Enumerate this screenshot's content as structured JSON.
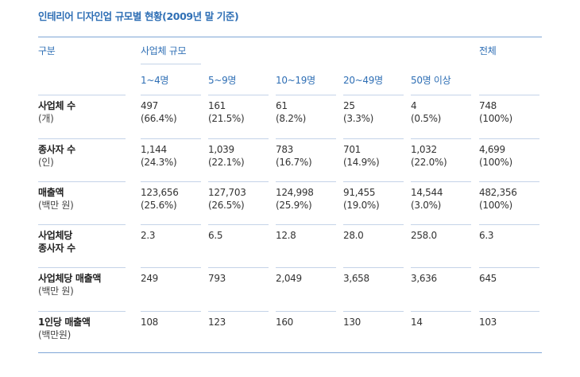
{
  "title": "인테리어 디자인업 규모별 현황(2009년 말 기준)",
  "header": {
    "category": "구분",
    "group": "사업체 규모",
    "total": "전체",
    "sizes": [
      "1~4명",
      "5~9명",
      "10~19명",
      "20~49명",
      "50명 이상"
    ]
  },
  "rows": [
    {
      "label": "사업체 수",
      "sub": "(개)",
      "cells": [
        [
          "497",
          "(66.4%)"
        ],
        [
          "161",
          "(21.5%)"
        ],
        [
          "61",
          "(8.2%)"
        ],
        [
          "25",
          "(3.3%)"
        ],
        [
          "4",
          "(0.5%)"
        ],
        [
          "748",
          "(100%)"
        ]
      ]
    },
    {
      "label": "종사자 수",
      "sub": "(인)",
      "cells": [
        [
          "1,144",
          "(24.3%)"
        ],
        [
          "1,039",
          "(22.1%)"
        ],
        [
          "783",
          "(16.7%)"
        ],
        [
          "701",
          "(14.9%)"
        ],
        [
          "1,032",
          "(22.0%)"
        ],
        [
          "4,699",
          "(100%)"
        ]
      ]
    },
    {
      "label": "매출액",
      "sub": "(백만 원)",
      "cells": [
        [
          "123,656",
          "(25.6%)"
        ],
        [
          "127,703",
          "(26.5%)"
        ],
        [
          "124,998",
          "(25.9%)"
        ],
        [
          "91,455",
          "(19.0%)"
        ],
        [
          "14,544",
          "(3.0%)"
        ],
        [
          "482,356",
          "(100%)"
        ]
      ]
    },
    {
      "label": "사업체당",
      "sub": "종사자 수",
      "sub_bold": true,
      "cells": [
        [
          "2.3"
        ],
        [
          "6.5"
        ],
        [
          "12.8"
        ],
        [
          "28.0"
        ],
        [
          "258.0"
        ],
        [
          "6.3"
        ]
      ]
    },
    {
      "label": "사업체당 매출액",
      "sub": "(백만 원)",
      "cells": [
        [
          "249"
        ],
        [
          "793"
        ],
        [
          "2,049"
        ],
        [
          "3,658"
        ],
        [
          "3,636"
        ],
        [
          "645"
        ]
      ]
    },
    {
      "label": "1인당 매출액",
      "sub": "(백만원)",
      "cells": [
        [
          "108"
        ],
        [
          "123"
        ],
        [
          "160"
        ],
        [
          "130"
        ],
        [
          "14"
        ],
        [
          "103"
        ]
      ]
    }
  ]
}
